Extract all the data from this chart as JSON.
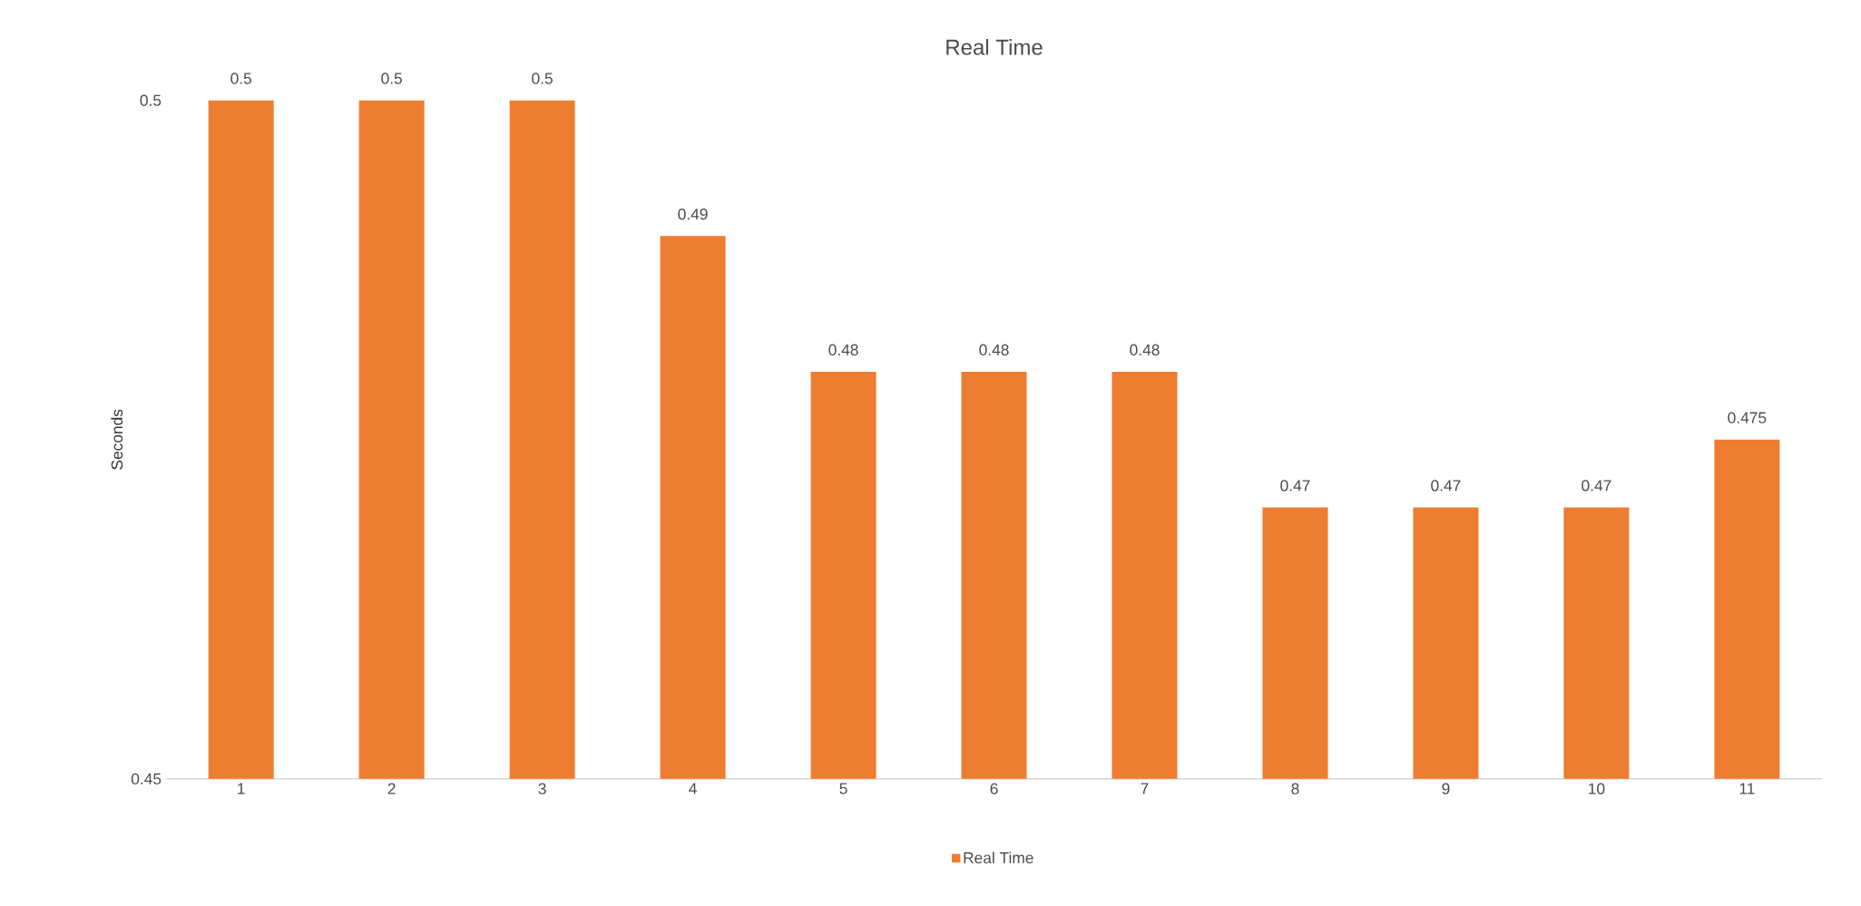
{
  "chart_data": {
    "type": "bar",
    "title": "Real Time",
    "ylabel": "Seconds",
    "categories": [
      "1",
      "2",
      "3",
      "4",
      "5",
      "6",
      "7",
      "8",
      "9",
      "10",
      "11"
    ],
    "series": [
      {
        "name": "Real Time",
        "color": "#ed7d31",
        "values": [
          0.5,
          0.5,
          0.5,
          0.49,
          0.48,
          0.48,
          0.48,
          0.47,
          0.47,
          0.47,
          0.475
        ]
      }
    ],
    "ylim": [
      0.45,
      0.5
    ],
    "yticks": [
      0.45,
      0.5
    ],
    "data_labels": true,
    "legend": "bottom"
  }
}
